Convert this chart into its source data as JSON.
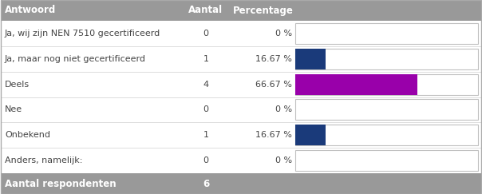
{
  "rows": [
    {
      "label": "Ja, wij zijn NEN 7510 gecertificeerd",
      "aantal": "0",
      "pct_str": "0 %",
      "percentage": 0.0,
      "bar_color": "#1a3a7a"
    },
    {
      "label": "Ja, maar nog niet gecertificeerd",
      "aantal": "1",
      "pct_str": "16.67 %",
      "percentage": 16.67,
      "bar_color": "#1a3a7a"
    },
    {
      "label": "Deels",
      "aantal": "4",
      "pct_str": "66.67 %",
      "percentage": 66.67,
      "bar_color": "#9900aa"
    },
    {
      "label": "Nee",
      "aantal": "0",
      "pct_str": "0 %",
      "percentage": 0.0,
      "bar_color": "#1a3a7a"
    },
    {
      "label": "Onbekend",
      "aantal": "1",
      "pct_str": "16.67 %",
      "percentage": 16.67,
      "bar_color": "#1a3a7a"
    },
    {
      "label": "Anders, namelijk:",
      "aantal": "0",
      "pct_str": "0 %",
      "percentage": 0.0,
      "bar_color": "#1a3a7a"
    }
  ],
  "header_bg": "#999999",
  "header_text": "#ffffff",
  "footer_bg": "#999999",
  "footer_text": "#ffffff",
  "row_bg": "#ffffff",
  "bar_bg": "#ffffff",
  "bar_border": "#c0c0c0",
  "outer_border": "#aaaaaa",
  "row_sep": "#d8d8d8",
  "col_antwoord": "Antwoord",
  "col_aantal": "Aantal",
  "col_percentage": "Percentage",
  "footer_label": "Aantal respondenten",
  "footer_value": "6",
  "max_pct": 100.0,
  "text_color": "#444444",
  "figw": 6.04,
  "figh": 2.43,
  "dpi": 100
}
